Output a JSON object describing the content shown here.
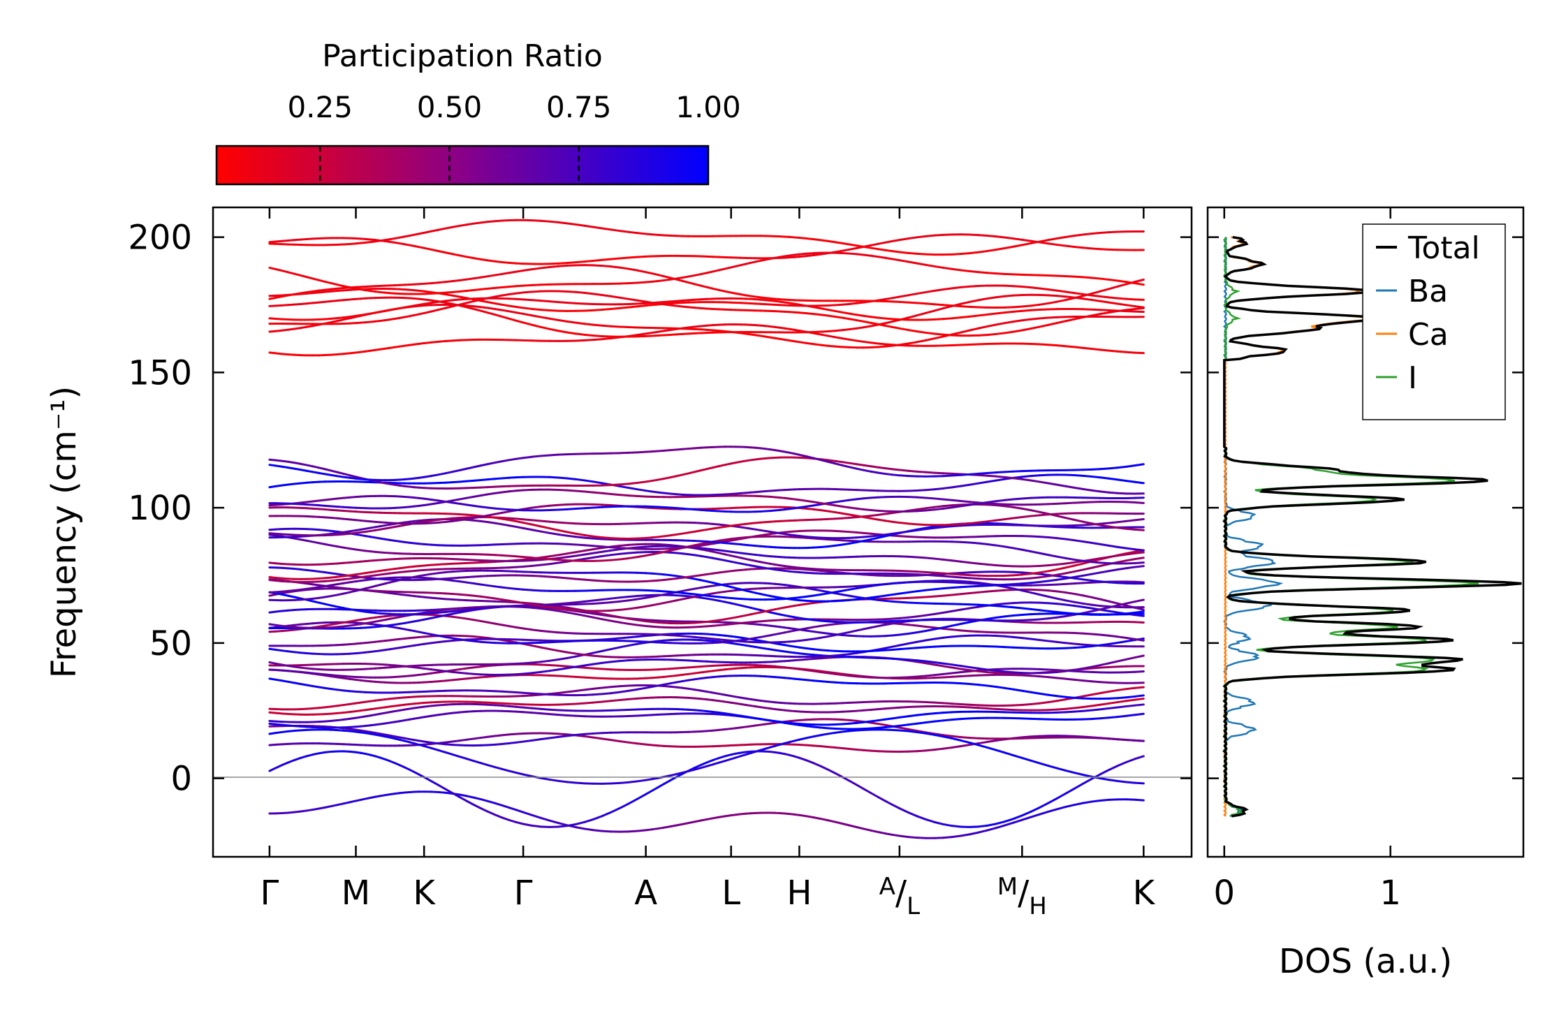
{
  "colorbar": {
    "title": "Participation Ratio",
    "ticks": [
      0.25,
      0.5,
      0.75,
      1.0
    ],
    "tick_labels": [
      "0.25",
      "0.50",
      "0.75",
      "1.00"
    ],
    "range": [
      0.05,
      1.0
    ],
    "colors": {
      "low": "#ff0000",
      "high": "#0000ff"
    }
  },
  "chart_data": [
    {
      "type": "line",
      "name": "phonon band structure",
      "ylabel": "Frequency (cm⁻¹)",
      "ylim": [
        -29,
        211
      ],
      "yticks": [
        0,
        50,
        100,
        150,
        200
      ],
      "zero_line": true,
      "kpath_labels": [
        "Γ",
        "M",
        "K",
        "Γ",
        "A",
        "L",
        "H",
        "A/L",
        "M/H",
        "K"
      ],
      "path_positions": [
        0,
        0.81,
        1.45,
        2.38,
        3.53,
        4.33,
        4.97,
        5.91,
        7.06,
        8.2
      ],
      "segment_breaks": [
        1,
        2,
        3,
        7,
        8
      ],
      "color_scale": "Participation Ratio",
      "bands": {
        "high_group": {
          "count": 10,
          "range": [
            157,
            200
          ],
          "participation": 0.1,
          "values": [
            162,
            167,
            170,
            172,
            174,
            177,
            181,
            186,
            195,
            200
          ]
        },
        "mid_group": {
          "count": 38,
          "range": [
            12,
            121
          ],
          "values_at_gamma": [
            13,
            17,
            22,
            24,
            27,
            30,
            34,
            38,
            40,
            42,
            45,
            48,
            50,
            53,
            55,
            58,
            60,
            62,
            64,
            66,
            68,
            70,
            72,
            75,
            78,
            80,
            82,
            85,
            88,
            90,
            93,
            95,
            98,
            101,
            103,
            108,
            112,
            117
          ],
          "participation_range": [
            0.3,
            0.95
          ]
        },
        "acoustic": {
          "count": 3,
          "range": [
            -18,
            25
          ],
          "participation_range": [
            0.3,
            0.95
          ]
        }
      }
    },
    {
      "type": "line",
      "name": "density of states",
      "xlabel": "DOS (a.u.)",
      "xlim": [
        -0.1,
        1.8
      ],
      "xticks": [
        0,
        1
      ],
      "ylim": [
        -29,
        211
      ],
      "legend_position": "top-right",
      "series": [
        {
          "name": "Total",
          "color": "#000000",
          "peaks": [
            [
              -12,
              0.1
            ],
            [
              40,
              1.3
            ],
            [
              44,
              1.35
            ],
            [
              51,
              1.35
            ],
            [
              56,
              1.15
            ],
            [
              62,
              1.1
            ],
            [
              72,
              1.75
            ],
            [
              80,
              1.2
            ],
            [
              103,
              1.05
            ],
            [
              110,
              1.55
            ],
            [
              114,
              0.6
            ],
            [
              158,
              0.35
            ],
            [
              166,
              0.5
            ],
            [
              170,
              0.9
            ],
            [
              180,
              0.85
            ],
            [
              190,
              0.2
            ],
            [
              198,
              0.1
            ]
          ]
        },
        {
          "name": "Ba",
          "color": "#1f77b4",
          "peaks": [
            [
              -12,
              0.07
            ],
            [
              18,
              0.15
            ],
            [
              28,
              0.15
            ],
            [
              45,
              0.18
            ],
            [
              52,
              0.12
            ],
            [
              64,
              0.25
            ],
            [
              72,
              0.3
            ],
            [
              80,
              0.28
            ],
            [
              86,
              0.2
            ],
            [
              97,
              0.15
            ]
          ]
        },
        {
          "name": "Ca",
          "color": "#ff7f0e",
          "peaks": [
            [
              158,
              0.33
            ],
            [
              166,
              0.48
            ],
            [
              170,
              0.85
            ],
            [
              180,
              0.8
            ],
            [
              190,
              0.18
            ],
            [
              198,
              0.08
            ]
          ]
        },
        {
          "name": "I",
          "color": "#2ca02c",
          "peaks": [
            [
              -12,
              0.07
            ],
            [
              40,
              1.15
            ],
            [
              44,
              1.2
            ],
            [
              51,
              1.2
            ],
            [
              56,
              1.0
            ],
            [
              62,
              1.0
            ],
            [
              72,
              1.5
            ],
            [
              80,
              1.1
            ],
            [
              103,
              0.9
            ],
            [
              110,
              1.35
            ],
            [
              114,
              0.5
            ],
            [
              170,
              0.05
            ],
            [
              180,
              0.05
            ]
          ]
        }
      ],
      "legend": [
        "Total",
        "Ba",
        "Ca",
        "I"
      ]
    }
  ]
}
